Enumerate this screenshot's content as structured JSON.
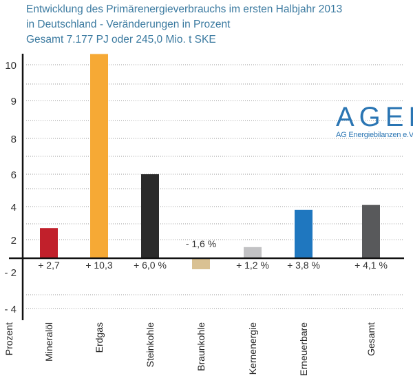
{
  "chart_data": {
    "type": "bar",
    "title": "Entwicklung des Primärenergieverbrauchs im ersten Halbjahr 2013",
    "subtitle": "in Deutschland - Veränderungen in Prozent",
    "subtitle2": "Gesamt 7.177 PJ oder 245,0 Mio. t SKE",
    "ylabel": "Prozent",
    "xlabel": "",
    "categories": [
      "Mineralöl",
      "Erdgas",
      "Steinkohle",
      "Braunkohle",
      "Kernenergie",
      "Erneuerbare",
      "Gesamt"
    ],
    "values": [
      2.7,
      10.3,
      6.0,
      -1.6,
      1.2,
      3.8,
      4.1
    ],
    "data_labels": [
      "+ 2,7",
      "+ 10,3",
      "+ 6,0 %",
      "- 1,6 %",
      "+ 1,2 %",
      "+ 3,8 %",
      "+ 4,1 %"
    ],
    "colors": [
      "#c1202b",
      "#f6a935",
      "#2b2b2b",
      "#d9c193",
      "#c2c2c4",
      "#1f77bf",
      "#58595b"
    ],
    "yticks": [
      "10",
      "9",
      "8",
      "6",
      "4",
      "2",
      "- 2",
      "- 4"
    ],
    "grid": true,
    "legend": "none"
  },
  "logo": {
    "name": "AGEB",
    "subtitle": "AG Energiebilanzen e.V."
  }
}
